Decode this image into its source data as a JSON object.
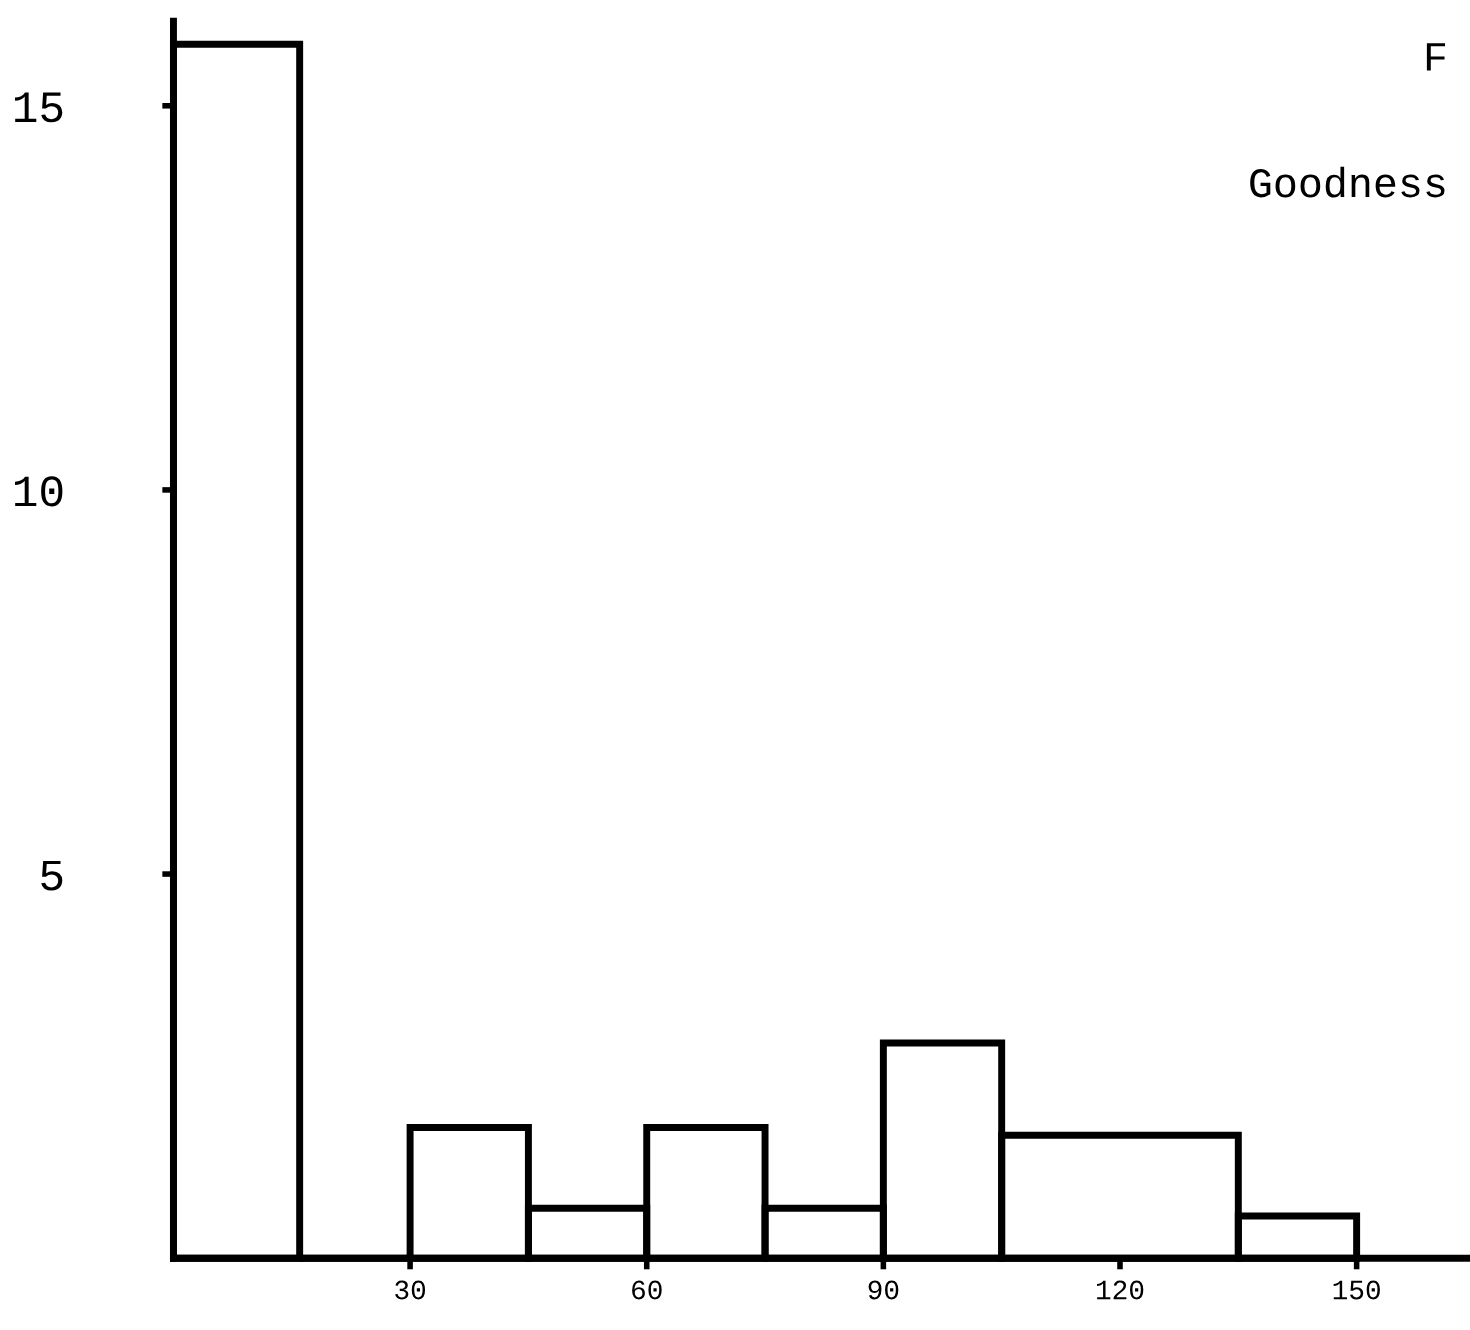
{
  "chart_data": {
    "type": "histogram",
    "title": "F",
    "subtitle": "Goodness",
    "bins": [
      0,
      16,
      30,
      45,
      60,
      75,
      90,
      105,
      135,
      150
    ],
    "values": [
      15.8,
      0,
      1.7,
      0.65,
      1.7,
      0.65,
      2.8,
      1.6,
      0.55
    ],
    "color": "#000000",
    "xlim": [
      0,
      164
    ],
    "xticks": [
      30,
      60,
      90,
      120,
      150
    ],
    "ylim": [
      0,
      16.1
    ],
    "yticks": [
      5,
      10,
      15
    ],
    "grid": false
  }
}
